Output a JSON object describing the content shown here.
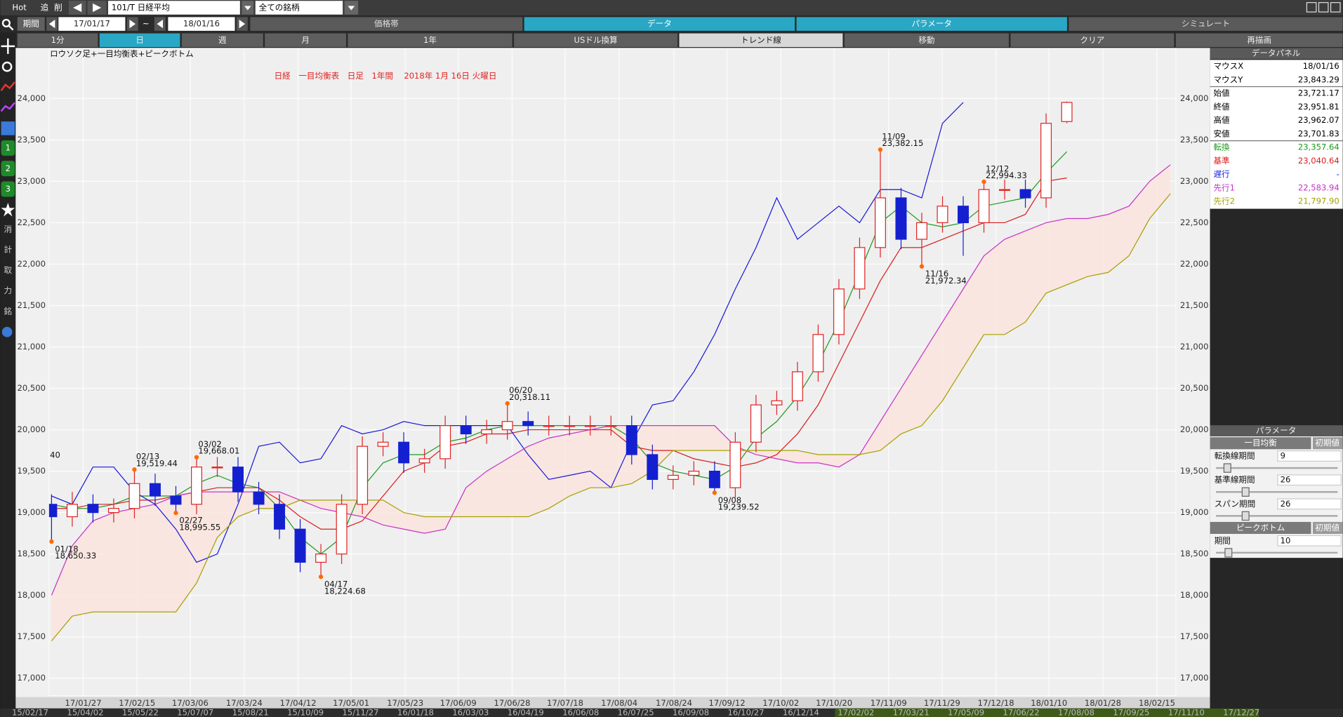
{
  "toolbar": {
    "buttons": [
      "Hot",
      "追",
      "削"
    ],
    "symbol": "101/T 日経平均",
    "universe": "全ての銘柄"
  },
  "period": {
    "label": "期間",
    "from": "17/01/17",
    "separator": "~",
    "to": "18/01/16"
  },
  "tabs": [
    "価格帯",
    "データ",
    "パラメータ",
    "シミュレート"
  ],
  "active_tabs": [
    1,
    2
  ],
  "buttons": [
    "1分",
    "日",
    "週",
    "月",
    "1年",
    "USドル換算",
    "トレンド線",
    "移動",
    "クリア",
    "再描画"
  ],
  "selected_button": 1,
  "side_icons": [
    "1",
    "2",
    "3",
    "消",
    "計",
    "取",
    "力",
    "銘"
  ],
  "chart_data": {
    "type": "candlestick",
    "subtitle": "ロウソク足+一目均衡表+ピークボトム",
    "title": "日経　一目均衡表　日足　1年間　 2018年 1月 16日 火曜日",
    "title_color": "#e02424",
    "edge_label": "40",
    "xlim": [
      -0.12,
      54.26
    ],
    "ylim": [
      16790,
      24600
    ],
    "grid": true,
    "yticks": [
      {
        "value": 17000,
        "label": "17,000"
      },
      {
        "value": 17500,
        "label": "17,500"
      },
      {
        "value": 18000,
        "label": "18,000"
      },
      {
        "value": 18500,
        "label": "18,500"
      },
      {
        "value": 19000,
        "label": "19,000"
      },
      {
        "value": 19500,
        "label": "19,500"
      },
      {
        "value": 20000,
        "label": "20,000"
      },
      {
        "value": 20500,
        "label": "20,500"
      },
      {
        "value": 21000,
        "label": "21,000"
      },
      {
        "value": 21500,
        "label": "21,500"
      },
      {
        "value": 22000,
        "label": "22,000"
      },
      {
        "value": 22500,
        "label": "22,500"
      },
      {
        "value": 23000,
        "label": "23,000"
      },
      {
        "value": 23500,
        "label": "23,500"
      },
      {
        "value": 24000,
        "label": "24,000"
      }
    ],
    "xticks": [
      {
        "value": 1.53,
        "label": "17/01/27"
      },
      {
        "value": 4.13,
        "label": "17/02/15"
      },
      {
        "value": 6.69,
        "label": "17/03/06"
      },
      {
        "value": 9.3,
        "label": "17/03/24"
      },
      {
        "value": 11.9,
        "label": "17/04/12"
      },
      {
        "value": 14.46,
        "label": "17/05/01"
      },
      {
        "value": 17.07,
        "label": "17/05/23"
      },
      {
        "value": 19.63,
        "label": "17/06/09"
      },
      {
        "value": 22.23,
        "label": "17/06/28"
      },
      {
        "value": 24.79,
        "label": "17/07/18"
      },
      {
        "value": 27.4,
        "label": "17/08/04"
      },
      {
        "value": 30.04,
        "label": "17/08/24"
      },
      {
        "value": 32.6,
        "label": "17/09/12"
      },
      {
        "value": 35.2,
        "label": "17/10/02"
      },
      {
        "value": 37.77,
        "label": "17/10/20"
      },
      {
        "value": 40.4,
        "label": "17/11/09"
      },
      {
        "value": 42.98,
        "label": "17/11/29"
      },
      {
        "value": 45.58,
        "label": "17/12/18"
      },
      {
        "value": 48.14,
        "label": "18/01/10"
      },
      {
        "value": 50.74,
        "label": "18/01/28"
      },
      {
        "value": 53.35,
        "label": "18/02/15"
      }
    ],
    "secondary_x_labels": [
      "15/02/17",
      "15/04/02",
      "15/05/22",
      "15/07/07",
      "15/08/21",
      "15/10/09",
      "15/11/27",
      "16/01/18",
      "16/03/03",
      "16/04/19",
      "16/06/08",
      "16/07/25",
      "16/09/08",
      "16/10/27",
      "16/12/14",
      "17/02/02",
      "17/03/21",
      "17/05/09",
      "17/06/22",
      "17/08/08",
      "17/09/25",
      "17/11/10",
      "17/12/27"
    ],
    "candles": {
      "up_color": "#e02424",
      "down_color": "#1420d0",
      "open": [
        19100,
        18950,
        19100,
        19000,
        19050,
        19350,
        19200,
        19100,
        19550,
        19550,
        19250,
        19100,
        18800,
        18400,
        18500,
        19100,
        19800,
        19850,
        19600,
        19650,
        20050,
        19950,
        20000,
        20100,
        20050,
        20050,
        20050,
        20050,
        20050,
        19700,
        19400,
        19450,
        19500,
        19300,
        19850,
        20300,
        20350,
        20700,
        21150,
        21700,
        22200,
        22800,
        22300,
        22500,
        22700,
        22500,
        22900,
        22900,
        22800,
        23721.17
      ],
      "high": [
        19220,
        19250,
        19220,
        19170,
        19519.44,
        19470,
        19320,
        19668.01,
        19670,
        19670,
        19370,
        19220,
        18920,
        18620,
        19220,
        19920,
        19970,
        19970,
        19770,
        20170,
        20170,
        20120,
        20318.11,
        20220,
        20170,
        20170,
        20170,
        20170,
        20170,
        19820,
        19570,
        19620,
        19620,
        19970,
        20420,
        20470,
        20820,
        21270,
        21820,
        22320,
        23382.15,
        22920,
        22620,
        22820,
        22820,
        22994.33,
        23020,
        23020,
        23820,
        23962.07
      ],
      "low": [
        18650.33,
        18830,
        18880,
        18880,
        18930,
        19080,
        18995.55,
        18980,
        19430,
        19130,
        18980,
        18680,
        18280,
        18224.68,
        18380,
        18980,
        19680,
        19480,
        19480,
        19530,
        19830,
        19830,
        19880,
        19930,
        19930,
        19930,
        19930,
        19930,
        19580,
        19280,
        19280,
        19330,
        19239.52,
        19180,
        19730,
        20180,
        20230,
        20580,
        21030,
        21580,
        22080,
        22180,
        21972.34,
        22380,
        22100,
        22380,
        22780,
        22680,
        22680,
        23701.83
      ],
      "close": [
        18950,
        19100,
        19000,
        19050,
        19350,
        19200,
        19100,
        19550,
        19550,
        19250,
        19100,
        18800,
        18400,
        18500,
        19100,
        19800,
        19850,
        19600,
        19650,
        20050,
        19950,
        20000,
        20100,
        20050,
        20050,
        20050,
        20050,
        20050,
        19700,
        19400,
        19450,
        19500,
        19300,
        19850,
        20300,
        20350,
        20700,
        21150,
        21700,
        22200,
        22800,
        22300,
        22500,
        22700,
        22500,
        22900,
        22900,
        22800,
        23700,
        23951.81
      ]
    },
    "cloud_color": "#fbe4dc",
    "series": [
      {
        "color": "#1f9a1f",
        "values": [
          19100,
          19050,
          19050,
          19100,
          19200,
          19200,
          19200,
          19350,
          19450,
          19350,
          19300,
          19050,
          18700,
          18500,
          18700,
          19300,
          19600,
          19700,
          19700,
          19850,
          19900,
          20000,
          20050,
          20050,
          20050,
          20050,
          20050,
          20050,
          19900,
          19600,
          19500,
          19450,
          19400,
          19550,
          19900,
          20100,
          20400,
          20800,
          21300,
          21900,
          22500,
          22700,
          22500,
          22450,
          22500,
          22700,
          22750,
          22800,
          23100,
          23357.64,
          null,
          null,
          null,
          null,
          null
        ]
      },
      {
        "color": "#d81e1e",
        "values": [
          19050,
          19050,
          19100,
          19100,
          19150,
          19150,
          19200,
          19250,
          19300,
          19300,
          19300,
          19150,
          18950,
          18800,
          18800,
          18900,
          19200,
          19500,
          19600,
          19800,
          19850,
          19950,
          19950,
          20000,
          20000,
          20000,
          20000,
          20000,
          19800,
          19750,
          19750,
          19650,
          19600,
          19550,
          19600,
          19700,
          19950,
          20300,
          20800,
          21300,
          21800,
          22200,
          22200,
          22300,
          22400,
          22500,
          22500,
          22600,
          23000,
          23040.64,
          null,
          null,
          null,
          null,
          null
        ]
      },
      {
        "color": "#1a1ad8",
        "values": [
          19200,
          19100,
          19550,
          19550,
          19250,
          19100,
          18800,
          18400,
          18500,
          19100,
          19800,
          19850,
          19600,
          19650,
          20050,
          19950,
          20000,
          20100,
          20050,
          20050,
          20050,
          20050,
          20050,
          19700,
          19400,
          19450,
          19500,
          19300,
          19850,
          20300,
          20350,
          20700,
          21150,
          21700,
          22200,
          22800,
          22300,
          22500,
          22700,
          22500,
          22900,
          22900,
          22800,
          23700,
          23951.81,
          null,
          null,
          null,
          null,
          null,
          null,
          null,
          null,
          null,
          null
        ]
      },
      {
        "color": "#c832c8",
        "values": [
          18000,
          18600,
          18900,
          19000,
          19050,
          19100,
          19200,
          19250,
          19250,
          19250,
          19250,
          19250,
          19150,
          19050,
          19000,
          18950,
          18850,
          18800,
          18750,
          18800,
          19300,
          19500,
          19650,
          19800,
          19900,
          19950,
          20000,
          20050,
          20050,
          20050,
          20050,
          20050,
          20050,
          19800,
          19700,
          19650,
          19600,
          19600,
          19550,
          19700,
          20100,
          20500,
          20900,
          21300,
          21700,
          22100,
          22300,
          22400,
          22500,
          22550,
          22550,
          22600,
          22700,
          23000,
          23200
        ]
      },
      {
        "color": "#a5a000",
        "values": [
          17450,
          17750,
          17800,
          17800,
          17800,
          17800,
          17800,
          18150,
          18700,
          18950,
          19050,
          19050,
          19150,
          19150,
          19150,
          19150,
          19150,
          19000,
          18950,
          18950,
          18950,
          18950,
          18950,
          18950,
          19050,
          19200,
          19300,
          19300,
          19350,
          19500,
          19750,
          19750,
          19750,
          19750,
          19750,
          19750,
          19750,
          19700,
          19700,
          19700,
          19750,
          19950,
          20050,
          20350,
          20750,
          21150,
          21150,
          21300,
          21650,
          21750,
          21850,
          21900,
          22100,
          22550,
          22850
        ]
      }
    ],
    "peak_color": "#ff6a00",
    "peaks": [
      {
        "x": 0,
        "date": "01/18",
        "value": 18650.33,
        "label": "18,650.33"
      },
      {
        "x": 4,
        "date": "02/13",
        "value": 19519.44,
        "label": "19,519.44"
      },
      {
        "x": 6,
        "date": "02/27",
        "value": 18995.55,
        "label": "18,995.55"
      },
      {
        "x": 7,
        "date": "03/02",
        "value": 19668.01,
        "label": "19,668.01"
      },
      {
        "x": 13,
        "date": "04/17",
        "value": 18224.68,
        "label": "18,224.68"
      },
      {
        "x": 22,
        "date": "06/20",
        "value": 20318.11,
        "label": "20,318.11"
      },
      {
        "x": 32,
        "date": "09/08",
        "value": 19239.52,
        "label": "19,239.52"
      },
      {
        "x": 40,
        "date": "11/09",
        "value": 23382.15,
        "label": "23,382.15"
      },
      {
        "x": 42,
        "date": "11/16",
        "value": 21972.34,
        "label": "21,972.34"
      },
      {
        "x": 45,
        "date": "12/12",
        "value": 22994.33,
        "label": "22,994.33"
      }
    ]
  },
  "data_panel": {
    "title": "データパネル",
    "rows": [
      {
        "label": "マウスX",
        "value": "18/01/16",
        "color": "#000000"
      },
      {
        "label": "マウスY",
        "value": "23,843.29",
        "color": "#000000"
      },
      {
        "label": "始値",
        "value": "23,721.17",
        "color": "#000000"
      },
      {
        "label": "終値",
        "value": "23,951.81",
        "color": "#000000"
      },
      {
        "label": "高値",
        "value": "23,962.07",
        "color": "#000000"
      },
      {
        "label": "安値",
        "value": "23,701.83",
        "color": "#000000"
      },
      {
        "label": "転換",
        "value": "23,357.64",
        "color": "#1f9a1f"
      },
      {
        "label": "基準",
        "value": "23,040.64",
        "color": "#d81e1e"
      },
      {
        "label": "遅行",
        "value": "-",
        "color": "#1a1ad8"
      },
      {
        "label": "先行1",
        "value": "22,583.94",
        "color": "#c832c8"
      },
      {
        "label": "先行2",
        "value": "21,797.90",
        "color": "#a5a000"
      }
    ]
  },
  "param_panel": {
    "title": "パラメータ",
    "sections": [
      {
        "title": "一目均衡",
        "reset": "初期値",
        "rows": [
          {
            "label": "転換線期間",
            "value": 9
          },
          {
            "label": "基準線期間",
            "value": 26
          },
          {
            "label": "スパン期間",
            "value": 26
          }
        ]
      },
      {
        "title": "ピークボトム",
        "reset": "初期値",
        "rows": [
          {
            "label": "期間",
            "value": 10
          }
        ]
      }
    ]
  }
}
